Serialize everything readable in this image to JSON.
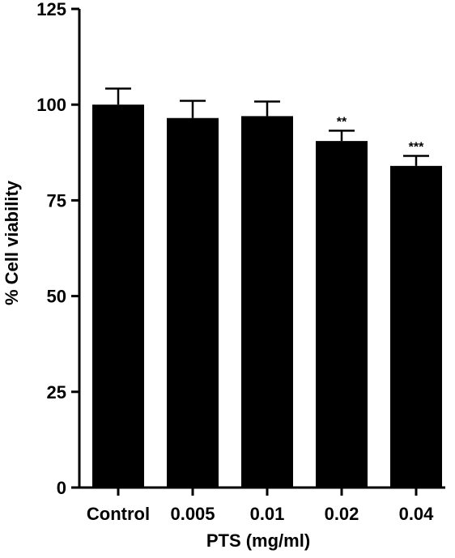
{
  "chart_data": {
    "type": "bar",
    "title": "",
    "xlabel": "PTS (mg/ml)",
    "ylabel": "% Cell viability",
    "categories": [
      "Control",
      "0.005",
      "0.01",
      "0.02",
      "0.04"
    ],
    "values": [
      100,
      96.5,
      97,
      90.5,
      84
    ],
    "errors": [
      4.2,
      4.5,
      3.8,
      2.7,
      2.6
    ],
    "annotations": [
      "",
      "",
      "",
      "**",
      "***"
    ],
    "ylim": [
      0,
      125
    ],
    "yticks": [
      0,
      25,
      50,
      75,
      100,
      125
    ],
    "bar_color": "#000000",
    "grid": false,
    "legend": "none"
  }
}
